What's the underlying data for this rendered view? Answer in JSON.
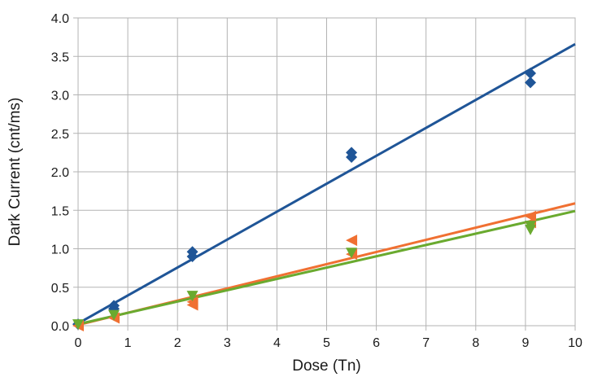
{
  "chart_data": {
    "type": "scatter",
    "title": "",
    "xlabel": "Dose (Tn)",
    "ylabel": "Dark Current (cnt/ms)",
    "xlim": [
      0,
      10
    ],
    "ylim": [
      0,
      4
    ],
    "x_ticks": [
      "0",
      "1",
      "2",
      "3",
      "4",
      "5",
      "6",
      "7",
      "8",
      "9",
      "10"
    ],
    "y_ticks": [
      "0.0",
      "0.5",
      "1.0",
      "1.5",
      "2.0",
      "2.5",
      "3.0",
      "3.5",
      "4.0"
    ],
    "grid": true,
    "series": [
      {
        "marker": "diamond",
        "color": "#1f5597",
        "points": [
          [
            0,
            0.02
          ],
          [
            0.72,
            0.22
          ],
          [
            0.72,
            0.26
          ],
          [
            2.3,
            0.9
          ],
          [
            2.3,
            0.96
          ],
          [
            5.5,
            2.19
          ],
          [
            5.5,
            2.25
          ],
          [
            9.1,
            3.16
          ],
          [
            9.1,
            3.28
          ]
        ],
        "trendline": [
          [
            0,
            0.03
          ],
          [
            10,
            3.66
          ]
        ]
      },
      {
        "marker": "triangle-left",
        "color": "#f07032",
        "points": [
          [
            0,
            0.0
          ],
          [
            0.72,
            0.1
          ],
          [
            2.3,
            0.27
          ],
          [
            2.3,
            0.31
          ],
          [
            5.5,
            0.93
          ],
          [
            5.5,
            1.11
          ],
          [
            9.1,
            1.34
          ],
          [
            9.1,
            1.42
          ]
        ],
        "trendline": [
          [
            0,
            0.01
          ],
          [
            10,
            1.59
          ]
        ]
      },
      {
        "marker": "triangle-down",
        "color": "#6aaa2f",
        "points": [
          [
            0,
            0.02
          ],
          [
            0.72,
            0.14
          ],
          [
            2.3,
            0.39
          ],
          [
            5.5,
            0.95
          ],
          [
            9.1,
            1.25
          ],
          [
            9.1,
            1.3
          ]
        ],
        "trendline": [
          [
            0,
            0.02
          ],
          [
            10,
            1.49
          ]
        ]
      }
    ]
  }
}
